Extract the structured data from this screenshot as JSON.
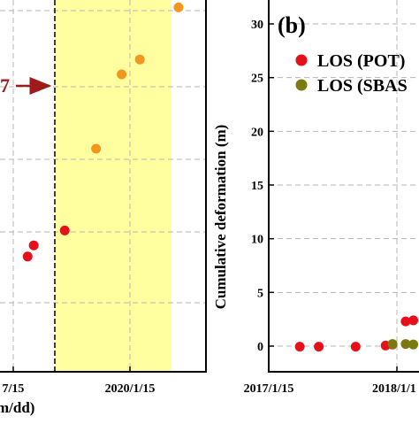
{
  "chart_data": [
    {
      "panel": "left",
      "type": "scatter",
      "xlabel": "m/dd)",
      "x_tick_labels": [
        "7/15",
        "2020/1/15"
      ],
      "arrow_label": "7",
      "highlight_region": true,
      "grid": true,
      "series": [
        {
          "color": "#e5101a",
          "points": [
            {
              "x": "2019-03-01",
              "y": 0.31
            },
            {
              "x": "2019-03-20",
              "y": 0.34
            },
            {
              "x": "2019-06-25",
              "y": 0.38
            }
          ]
        },
        {
          "color": "#f2961e",
          "points": [
            {
              "x": "2019-10-01",
              "y": 0.6
            },
            {
              "x": "2019-12-20",
              "y": 0.8
            },
            {
              "x": "2020-02-15",
              "y": 0.84
            },
            {
              "x": "2020-06-15",
              "y": 0.98
            }
          ]
        }
      ]
    },
    {
      "panel": "right",
      "type": "scatter",
      "panel_label": "(b)",
      "ylabel": "Cumulative deformation (m)",
      "ylim": [
        0,
        32
      ],
      "y_ticks": [
        0,
        5,
        10,
        15,
        20,
        25,
        30
      ],
      "x_tick_labels": [
        "2017/1/15",
        "2018/1/1"
      ],
      "grid": true,
      "legend_position": "top-right",
      "legend": [
        {
          "label": "LOS (POT)",
          "color": "#e5101a"
        },
        {
          "label": "LOS (SBAS",
          "color": "#7a7a0e"
        }
      ],
      "series": [
        {
          "name": "LOS (POT)",
          "color": "#e5101a",
          "points": [
            {
              "x": "2017-04-10",
              "y": -0.05
            },
            {
              "x": "2017-06-01",
              "y": -0.05
            },
            {
              "x": "2017-09-10",
              "y": -0.05
            },
            {
              "x": "2017-12-01",
              "y": 0.05
            },
            {
              "x": "2017-12-20",
              "y": 0.15
            },
            {
              "x": "2018-01-25",
              "y": 2.3
            },
            {
              "x": "2018-02-15",
              "y": 2.4
            }
          ]
        },
        {
          "name": "LOS (SBAS",
          "color": "#7a7a0e",
          "points": [
            {
              "x": "2017-12-20",
              "y": 0.2
            },
            {
              "x": "2018-01-25",
              "y": 0.2
            },
            {
              "x": "2018-02-15",
              "y": 0.15
            }
          ]
        }
      ]
    }
  ]
}
